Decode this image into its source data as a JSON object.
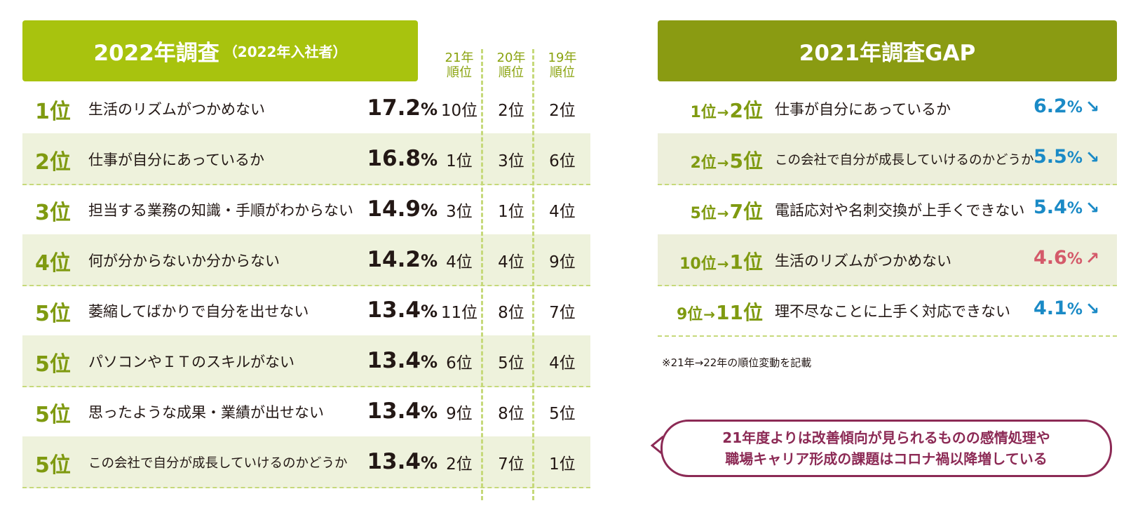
{
  "chart_data": {
    "type": "table",
    "left_table": {
      "title": "2022年調査",
      "subtitle": "（2022年入社者）",
      "year_columns": [
        {
          "line1": "21年",
          "line2": "順位"
        },
        {
          "line1": "20年",
          "line2": "順位"
        },
        {
          "line1": "19年",
          "line2": "順位"
        }
      ],
      "rows": [
        {
          "rank": "1位",
          "label": "生活のリズムがつかめない",
          "pct": "17.2",
          "r21": "10位",
          "r20": "2位",
          "r19": "2位"
        },
        {
          "rank": "2位",
          "label": "仕事が自分にあっているか",
          "pct": "16.8",
          "r21": "1位",
          "r20": "3位",
          "r19": "6位"
        },
        {
          "rank": "3位",
          "label": "担当する業務の知識・手順がわからない",
          "pct": "14.9",
          "r21": "3位",
          "r20": "1位",
          "r19": "4位"
        },
        {
          "rank": "4位",
          "label": "何が分からないか分からない",
          "pct": "14.2",
          "r21": "4位",
          "r20": "4位",
          "r19": "9位"
        },
        {
          "rank": "5位",
          "label": "萎縮してばかりで自分を出せない",
          "pct": "13.4",
          "r21": "11位",
          "r20": "8位",
          "r19": "7位"
        },
        {
          "rank": "5位",
          "label": "パソコンやＩＴのスキルがない",
          "pct": "13.4",
          "r21": "6位",
          "r20": "5位",
          "r19": "4位"
        },
        {
          "rank": "5位",
          "label": "思ったような成果・業績が出せない",
          "pct": "13.4",
          "r21": "9位",
          "r20": "8位",
          "r19": "5位"
        },
        {
          "rank": "5位",
          "label": "この会社で自分が成長していけるのかどうか",
          "pct": "13.4",
          "r21": "2位",
          "r20": "7位",
          "r19": "1位"
        }
      ],
      "pct_sign": "%"
    },
    "right_table": {
      "title": "2021年調査GAP",
      "rows": [
        {
          "from": "1位",
          "to": "2位",
          "label": "仕事が自分にあっているか",
          "value": "6.2",
          "direction": "↘",
          "color": "#1a8ac6"
        },
        {
          "from": "2位",
          "to": "5位",
          "label": "この会社で自分が成長していけるのかどうか",
          "value": "5.5",
          "direction": "↘",
          "color": "#1a8ac6"
        },
        {
          "from": "5位",
          "to": "7位",
          "label": "電話応対や名刺交換が上手くできない",
          "value": "5.4",
          "direction": "↘",
          "color": "#1a8ac6"
        },
        {
          "from": "10位",
          "to": "1位",
          "label": "生活のリズムがつかめない",
          "value": "4.6",
          "direction": "↗",
          "color": "#d45a6a"
        },
        {
          "from": "9位",
          "to": "11位",
          "label": "理不尽なことに上手く対応できない",
          "value": "4.1",
          "direction": "↘",
          "color": "#1a8ac6"
        }
      ],
      "arrow": "→",
      "pct_sign": "%",
      "note": "※21年→22年の順位変動を記載"
    },
    "callout": {
      "line1": "21年度よりは改善傾向が見られるものの感情処理や",
      "line2": "職場キャリア形成の課題はコロナ禍以降増している"
    },
    "colors": {
      "left_header": "#a8c30e",
      "right_header": "#8a9b12",
      "rank_text": "#7f9a10",
      "callout": "#8c2a55"
    }
  }
}
